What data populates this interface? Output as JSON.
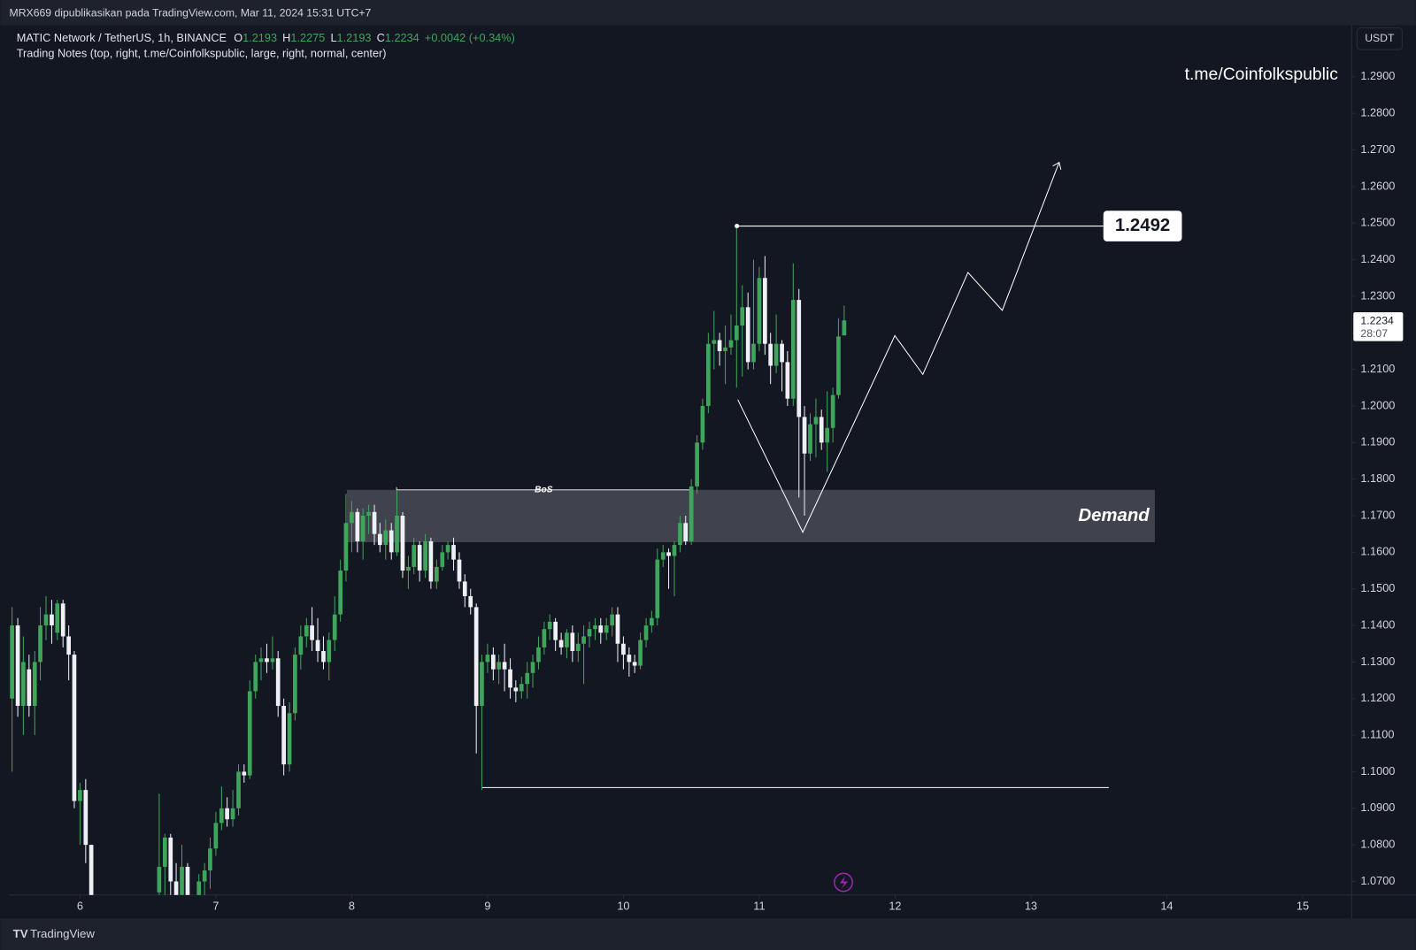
{
  "top_bar": {
    "text": "MRX669 dipublikasikan pada TradingView.com, Mar 11, 2024 15:31 UTC+7"
  },
  "chart_data": {
    "type": "candlestick",
    "title": "MATIC Network / TetherUS, 1h, BINANCE",
    "ohlc_labels": [
      "O",
      "H",
      "L",
      "C"
    ],
    "change": "+0.0042 (+0.34%)",
    "indicator": "Trading Notes (top, right, t.me/Coinfolkspublic, large, right, normal, center)",
    "watermark_text": "t.me/Coinfolkspublic",
    "currency": "USDT",
    "countdown": "28:07",
    "up_color": "#3fa55a",
    "down_color": "#eef0f5",
    "x": [
      5.5,
      5.542,
      5.583,
      5.625,
      5.667,
      5.708,
      5.75,
      5.792,
      5.833,
      5.875,
      5.917,
      5.958,
      6,
      6.042,
      6.083,
      6.583,
      6.625,
      6.667,
      6.708,
      6.75,
      6.792,
      6.875,
      6.917,
      6.958,
      7,
      7.042,
      7.083,
      7.125,
      7.167,
      7.208,
      7.25,
      7.292,
      7.333,
      7.375,
      7.417,
      7.458,
      7.5,
      7.542,
      7.583,
      7.625,
      7.667,
      7.708,
      7.75,
      7.792,
      7.833,
      7.875,
      7.917,
      7.958,
      8,
      8.042,
      8.083,
      8.125,
      8.167,
      8.208,
      8.25,
      8.292,
      8.333,
      8.375,
      8.417,
      8.458,
      8.5,
      8.542,
      8.583,
      8.625,
      8.667,
      8.708,
      8.75,
      8.792,
      8.833,
      8.875,
      8.917,
      8.958,
      9,
      9.042,
      9.083,
      9.125,
      9.167,
      9.208,
      9.25,
      9.292,
      9.333,
      9.375,
      9.417,
      9.458,
      9.5,
      9.542,
      9.583,
      9.625,
      9.667,
      9.708,
      9.75,
      9.792,
      9.833,
      9.875,
      9.917,
      9.958,
      10,
      10.042,
      10.083,
      10.125,
      10.167,
      10.208,
      10.25,
      10.292,
      10.333,
      10.375,
      10.417,
      10.458,
      10.5,
      10.542,
      10.583,
      10.625,
      10.667,
      10.708,
      10.75,
      10.792,
      10.833,
      10.875,
      10.917,
      10.958,
      11,
      11.042,
      11.083,
      11.125,
      11.167,
      11.208,
      11.25,
      11.292,
      11.333,
      11.375,
      11.417,
      11.458,
      11.5,
      11.542,
      11.583,
      11.625
    ],
    "open": [
      1.12,
      1.14,
      1.118,
      1.128,
      1.118,
      1.13,
      1.14,
      1.143,
      1.138,
      1.146,
      1.137,
      1.132,
      1.092,
      1.095,
      1.08,
      1.067,
      1.074,
      1.082,
      1.07,
      1.066,
      1.074,
      1.065,
      1.07,
      1.073,
      1.079,
      1.086,
      1.09,
      1.087,
      1.09,
      1.1,
      1.099,
      1.122,
      1.13,
      1.131,
      1.13,
      1.131,
      1.118,
      1.102,
      1.116,
      1.132,
      1.137,
      1.14,
      1.136,
      1.133,
      1.13,
      1.136,
      1.143,
      1.155,
      1.168,
      1.171,
      1.163,
      1.17,
      1.171,
      1.165,
      1.162,
      1.166,
      1.16,
      1.17,
      1.155,
      1.156,
      1.162,
      1.155,
      1.163,
      1.152,
      1.156,
      1.16,
      1.162,
      1.158,
      1.152,
      1.148,
      1.145,
      1.118,
      1.13,
      1.132,
      1.128,
      1.13,
      1.128,
      1.123,
      1.122,
      1.124,
      1.127,
      1.13,
      1.134,
      1.139,
      1.141,
      1.136,
      1.134,
      1.138,
      1.133,
      1.135,
      1.137,
      1.139,
      1.14,
      1.138,
      1.14,
      1.143,
      1.135,
      1.132,
      1.13,
      1.129,
      1.136,
      1.14,
      1.142,
      1.158,
      1.16,
      1.159,
      1.162,
      1.168,
      1.163,
      1.178,
      1.19,
      1.2,
      1.217,
      1.218,
      1.215,
      1.216,
      1.218,
      1.222,
      1.227,
      1.212,
      1.217,
      1.235,
      1.217,
      1.211,
      1.217,
      1.212,
      1.202,
      1.229,
      1.197,
      1.187,
      1.195,
      1.197,
      1.19,
      1.194,
      1.203,
      1.2193
    ],
    "high": [
      1.145,
      1.142,
      1.137,
      1.132,
      1.133,
      1.145,
      1.148,
      1.147,
      1.147,
      1.147,
      1.14,
      1.133,
      1.097,
      1.098,
      1.08,
      1.094,
      1.083,
      1.083,
      1.075,
      1.08,
      1.075,
      1.072,
      1.075,
      1.082,
      1.089,
      1.096,
      1.093,
      1.095,
      1.102,
      1.102,
      1.125,
      1.132,
      1.134,
      1.135,
      1.137,
      1.133,
      1.12,
      1.119,
      1.134,
      1.14,
      1.142,
      1.145,
      1.142,
      1.137,
      1.138,
      1.148,
      1.158,
      1.176,
      1.174,
      1.172,
      1.172,
      1.173,
      1.173,
      1.168,
      1.169,
      1.168,
      1.177,
      1.171,
      1.159,
      1.164,
      1.163,
      1.165,
      1.164,
      1.158,
      1.162,
      1.163,
      1.164,
      1.16,
      1.154,
      1.15,
      1.146,
      1.132,
      1.135,
      1.134,
      1.132,
      1.135,
      1.131,
      1.125,
      1.126,
      1.13,
      1.132,
      1.137,
      1.141,
      1.143,
      1.142,
      1.138,
      1.139,
      1.14,
      1.138,
      1.14,
      1.141,
      1.142,
      1.142,
      1.142,
      1.145,
      1.145,
      1.137,
      1.134,
      1.132,
      1.138,
      1.142,
      1.144,
      1.161,
      1.162,
      1.161,
      1.163,
      1.17,
      1.17,
      1.18,
      1.192,
      1.202,
      1.22,
      1.226,
      1.22,
      1.222,
      1.225,
      1.249,
      1.233,
      1.231,
      1.24,
      1.238,
      1.241,
      1.22,
      1.225,
      1.218,
      1.215,
      1.239,
      1.232,
      1.2,
      1.198,
      1.202,
      1.199,
      1.204,
      1.205,
      1.224,
      1.2275
    ],
    "low": [
      1.1,
      1.115,
      1.11,
      1.115,
      1.11,
      1.125,
      1.136,
      1.135,
      1.136,
      1.134,
      1.125,
      1.09,
      1.08,
      1.075,
      1.062,
      1.065,
      1.065,
      1.066,
      1.063,
      1.063,
      1.062,
      1.064,
      1.066,
      1.068,
      1.077,
      1.084,
      1.085,
      1.085,
      1.088,
      1.097,
      1.098,
      1.12,
      1.125,
      1.127,
      1.128,
      1.115,
      1.099,
      1.1,
      1.114,
      1.128,
      1.134,
      1.133,
      1.13,
      1.128,
      1.125,
      1.133,
      1.141,
      1.152,
      1.16,
      1.16,
      1.158,
      1.165,
      1.162,
      1.16,
      1.158,
      1.158,
      1.159,
      1.153,
      1.15,
      1.154,
      1.152,
      1.153,
      1.15,
      1.15,
      1.155,
      1.158,
      1.155,
      1.15,
      1.145,
      1.143,
      1.105,
      1.095,
      1.127,
      1.125,
      1.124,
      1.122,
      1.12,
      1.119,
      1.12,
      1.12,
      1.123,
      1.128,
      1.132,
      1.136,
      1.133,
      1.132,
      1.131,
      1.13,
      1.13,
      1.124,
      1.134,
      1.136,
      1.135,
      1.136,
      1.137,
      1.13,
      1.128,
      1.126,
      1.127,
      1.128,
      1.134,
      1.138,
      1.14,
      1.156,
      1.15,
      1.148,
      1.16,
      1.162,
      1.162,
      1.176,
      1.188,
      1.198,
      1.21,
      1.211,
      1.206,
      1.214,
      1.205,
      1.208,
      1.21,
      1.21,
      1.215,
      1.214,
      1.206,
      1.209,
      1.204,
      1.2,
      1.2,
      1.175,
      1.17,
      1.185,
      1.186,
      1.188,
      1.182,
      1.19,
      1.202,
      1.2193
    ],
    "close": [
      1.14,
      1.118,
      1.13,
      1.118,
      1.13,
      1.14,
      1.143,
      1.14,
      1.146,
      1.137,
      1.132,
      1.092,
      1.095,
      1.08,
      1.065,
      1.074,
      1.082,
      1.07,
      1.065,
      1.074,
      1.066,
      1.07,
      1.073,
      1.079,
      1.086,
      1.09,
      1.087,
      1.09,
      1.1,
      1.099,
      1.122,
      1.13,
      1.131,
      1.13,
      1.131,
      1.118,
      1.102,
      1.116,
      1.132,
      1.137,
      1.14,
      1.136,
      1.133,
      1.13,
      1.136,
      1.143,
      1.155,
      1.168,
      1.171,
      1.163,
      1.17,
      1.171,
      1.165,
      1.162,
      1.166,
      1.16,
      1.17,
      1.155,
      1.156,
      1.162,
      1.155,
      1.163,
      1.152,
      1.156,
      1.16,
      1.162,
      1.158,
      1.152,
      1.148,
      1.145,
      1.118,
      1.13,
      1.132,
      1.128,
      1.13,
      1.128,
      1.123,
      1.122,
      1.124,
      1.127,
      1.13,
      1.134,
      1.139,
      1.141,
      1.136,
      1.134,
      1.138,
      1.133,
      1.135,
      1.137,
      1.139,
      1.14,
      1.138,
      1.14,
      1.143,
      1.135,
      1.132,
      1.13,
      1.129,
      1.136,
      1.14,
      1.142,
      1.158,
      1.16,
      1.159,
      1.162,
      1.168,
      1.163,
      1.178,
      1.19,
      1.2,
      1.217,
      1.218,
      1.215,
      1.216,
      1.218,
      1.222,
      1.227,
      1.212,
      1.217,
      1.235,
      1.217,
      1.211,
      1.217,
      1.212,
      1.202,
      1.229,
      1.197,
      1.187,
      1.195,
      1.197,
      1.19,
      1.194,
      1.203,
      1.219,
      1.2234
    ],
    "xlim": [
      5.48,
      15.36
    ],
    "ylim": [
      1.0663,
      1.3041
    ],
    "xticks": [
      6,
      7,
      8,
      9,
      10,
      11,
      12,
      13,
      14,
      15
    ],
    "yticks": [
      {
        "value": 1.29,
        "label": "1.2900"
      },
      {
        "value": 1.28,
        "label": "1.2800"
      },
      {
        "value": 1.27,
        "label": "1.2700"
      },
      {
        "value": 1.26,
        "label": "1.2600"
      },
      {
        "value": 1.25,
        "label": "1.2500"
      },
      {
        "value": 1.24,
        "label": "1.2400"
      },
      {
        "value": 1.23,
        "label": "1.2300"
      },
      {
        "value": 1.22,
        "label": "1.2200"
      },
      {
        "value": 1.21,
        "label": "1.2100"
      },
      {
        "value": 1.2,
        "label": "1.2000"
      },
      {
        "value": 1.19,
        "label": "1.1900"
      },
      {
        "value": 1.18,
        "label": "1.1800"
      },
      {
        "value": 1.17,
        "label": "1.1700"
      },
      {
        "value": 1.16,
        "label": "1.1600"
      },
      {
        "value": 1.15,
        "label": "1.1500"
      },
      {
        "value": 1.14,
        "label": "1.1400"
      },
      {
        "value": 1.13,
        "label": "1.1300"
      },
      {
        "value": 1.12,
        "label": "1.1200"
      },
      {
        "value": 1.11,
        "label": "1.1100"
      },
      {
        "value": 1.1,
        "label": "1.1000"
      },
      {
        "value": 1.09,
        "label": "1.0900"
      },
      {
        "value": 1.08,
        "label": "1.0800"
      },
      {
        "value": 1.07,
        "label": "1.0700"
      }
    ],
    "annotations": {
      "level": 1.2492,
      "bos": "BoS",
      "zone": "Demand"
    }
  },
  "footer": {
    "brand": "TradingView"
  }
}
